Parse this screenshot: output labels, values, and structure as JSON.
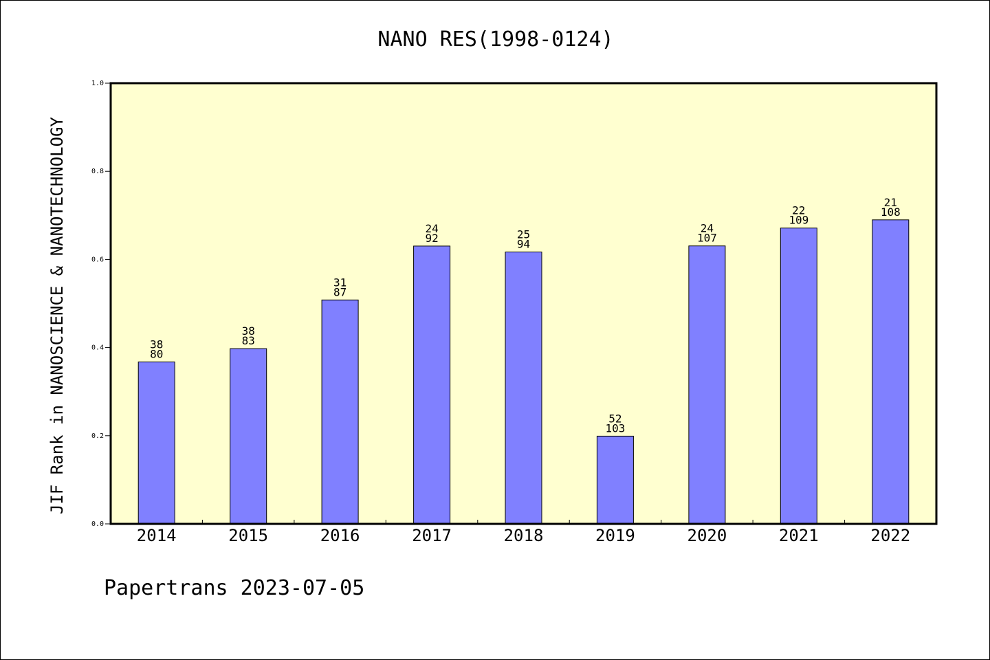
{
  "chart_data": {
    "type": "bar",
    "title": "NANO RES(1998-0124)",
    "xlabel": "",
    "ylabel": "JIF Rank in NANOSCIENCE & NANOTECHNOLOGY",
    "categories": [
      "2014",
      "2015",
      "2016",
      "2017",
      "2018",
      "2019",
      "2020",
      "2021",
      "2022"
    ],
    "values": [
      0.3675,
      0.3976,
      0.5081,
      0.6304,
      0.617,
      0.199,
      0.6308,
      0.6713,
      0.6898
    ],
    "labels": [
      {
        "rank": "38",
        "total": "80"
      },
      {
        "rank": "38",
        "total": "83"
      },
      {
        "rank": "31",
        "total": "87"
      },
      {
        "rank": "24",
        "total": "92"
      },
      {
        "rank": "25",
        "total": "94"
      },
      {
        "rank": "52",
        "total": "103"
      },
      {
        "rank": "24",
        "total": "107"
      },
      {
        "rank": "22",
        "total": "109"
      },
      {
        "rank": "21",
        "total": "108"
      }
    ],
    "ylim": [
      0,
      1.0
    ],
    "yticks": [
      "0.0",
      "0.2",
      "0.4",
      "0.6",
      "0.8",
      "1.0"
    ],
    "grid": false,
    "colors": {
      "bar": "#8080ff",
      "plot_background": "#ffffd0"
    }
  },
  "footer": {
    "text": "Papertrans 2023-07-05"
  }
}
